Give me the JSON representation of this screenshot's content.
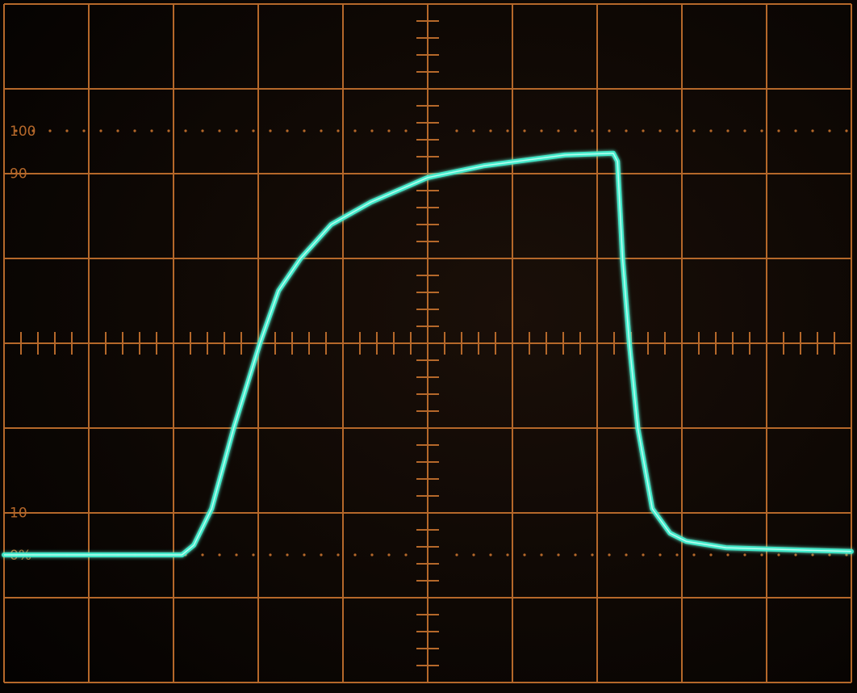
{
  "chart_data": {
    "type": "line",
    "title": "",
    "xlabel": "",
    "ylabel": "",
    "x_divisions": 10,
    "y_divisions": 8,
    "xlim": [
      0,
      10
    ],
    "ylim": [
      -5,
      137
    ],
    "grid": true,
    "reference_labels": [
      {
        "text": "100",
        "value": 100,
        "dotted": true
      },
      {
        "text": "90",
        "value": 90,
        "dotted": false
      },
      {
        "text": "10",
        "value": 10,
        "dotted": false
      },
      {
        "text": "0%",
        "value": 0,
        "dotted": true
      }
    ],
    "series": [
      {
        "x": [
          0,
          2.1,
          2.24,
          2.45,
          2.71,
          3.02,
          3.24,
          3.5,
          3.86,
          4.33,
          5.0,
          5.67,
          6.62,
          7.19,
          7.24,
          7.3,
          7.38,
          7.48,
          7.65,
          7.86,
          8.05,
          8.52,
          9.48,
          10
        ],
        "y": [
          0,
          0,
          2.3,
          10.9,
          29.9,
          49.9,
          62.3,
          69.9,
          77.9,
          83.2,
          89.0,
          91.8,
          94.3,
          94.7,
          92.8,
          69.9,
          49.9,
          29.9,
          10.9,
          5.1,
          3.2,
          1.7,
          1.1,
          0.8
        ]
      }
    ],
    "colors": {
      "grid": "#b5682a",
      "trace": "#3ff0cf",
      "background": "#070403"
    }
  }
}
